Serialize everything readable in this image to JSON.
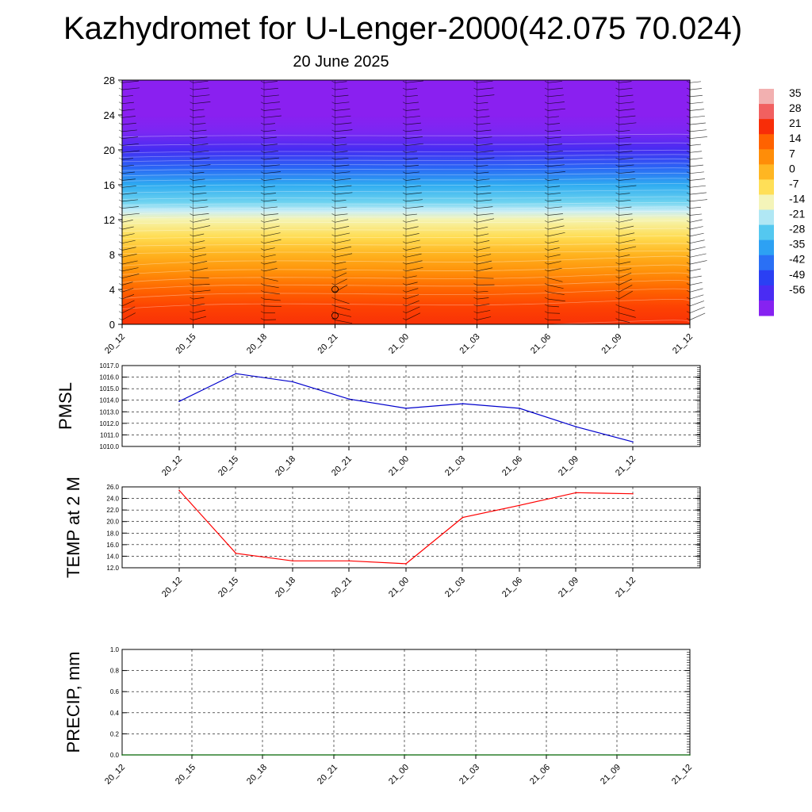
{
  "title": "Kazhydromet for U-Lenger-2000(42.075 70.024)",
  "subtitle": "20 June 2025",
  "chart_data": [
    {
      "type": "heatmap",
      "name": "cross-section",
      "x_ticks": [
        "20_12",
        "20_15",
        "20_18",
        "20_21",
        "21_00",
        "21_03",
        "21_06",
        "21_09",
        "21_12"
      ],
      "y_ticks": [
        0,
        4,
        8,
        12,
        16,
        20,
        24,
        28
      ],
      "ylim": [
        0,
        28
      ],
      "colorbar_labels": [
        "35",
        "28",
        "21",
        "14",
        "7",
        "0",
        "-7",
        "-14",
        "-21",
        "-28",
        "-35",
        "-42",
        "-49",
        "-56"
      ],
      "color_stops": [
        {
          "value": -60,
          "color": "#8a20f0"
        },
        {
          "value": -56,
          "color": "#6a2ef5"
        },
        {
          "value": -49,
          "color": "#2a2af0"
        },
        {
          "value": -42,
          "color": "#2a55f5"
        },
        {
          "value": -35,
          "color": "#2a8af5"
        },
        {
          "value": -28,
          "color": "#30b8f0"
        },
        {
          "value": -21,
          "color": "#78d8f0"
        },
        {
          "value": -14,
          "color": "#e8f6f8"
        },
        {
          "value": -7,
          "color": "#fff27a"
        },
        {
          "value": 0,
          "color": "#ffcc33"
        },
        {
          "value": 7,
          "color": "#ffa010"
        },
        {
          "value": 14,
          "color": "#ff7a00"
        },
        {
          "value": 21,
          "color": "#ff4a00"
        },
        {
          "value": 28,
          "color": "#f01010"
        },
        {
          "value": 35,
          "color": "#f2b0b0"
        }
      ],
      "temperature_profile": [
        {
          "height": 0,
          "temp": 24
        },
        {
          "height": 2,
          "temp": 22
        },
        {
          "height": 4,
          "temp": 17
        },
        {
          "height": 6,
          "temp": 10
        },
        {
          "height": 8,
          "temp": 4
        },
        {
          "height": 10,
          "temp": -3
        },
        {
          "height": 12,
          "temp": -10
        },
        {
          "height": 13,
          "temp": -16
        },
        {
          "height": 14,
          "temp": -22
        },
        {
          "height": 16,
          "temp": -30
        },
        {
          "height": 18,
          "temp": -40
        },
        {
          "height": 20,
          "temp": -52
        },
        {
          "height": 22,
          "temp": -58
        },
        {
          "height": 24,
          "temp": -60
        },
        {
          "height": 28,
          "temp": -60
        }
      ]
    },
    {
      "type": "line",
      "ylabel": "PMSL",
      "categories": [
        "20_12",
        "20_15",
        "20_18",
        "20_21",
        "21_00",
        "21_03",
        "21_06",
        "21_09",
        "21_12"
      ],
      "values": [
        1013.9,
        1016.3,
        1015.6,
        1014.1,
        1013.3,
        1013.7,
        1013.3,
        1011.7,
        1010.4
      ],
      "ylim": [
        1010,
        1017
      ],
      "y_ticks": [
        "1010.0",
        "1011.0",
        "1012.0",
        "1013.0",
        "1014.0",
        "1015.0",
        "1016.0",
        "1017.0"
      ],
      "color": "#0000cc",
      "grid": true
    },
    {
      "type": "line",
      "ylabel": "TEMP at 2 M",
      "categories": [
        "20_12",
        "20_15",
        "20_18",
        "20_21",
        "21_00",
        "21_03",
        "21_06",
        "21_09",
        "21_12"
      ],
      "values": [
        25.4,
        14.5,
        13.2,
        13.2,
        12.7,
        20.7,
        22.8,
        25.0,
        24.8
      ],
      "ylim": [
        12,
        26
      ],
      "y_ticks": [
        "12.0",
        "14.0",
        "16.0",
        "18.0",
        "20.0",
        "22.0",
        "24.0",
        "26.0"
      ],
      "color": "#ff0000",
      "grid": true
    },
    {
      "type": "line",
      "ylabel": "PRECIP, mm",
      "categories": [
        "20_12",
        "20_15",
        "20_18",
        "20_21",
        "21_00",
        "21_03",
        "21_06",
        "21_09",
        "21_12"
      ],
      "values": [
        0,
        0,
        0,
        0,
        0,
        0,
        0,
        0,
        0
      ],
      "ylim": [
        0,
        1
      ],
      "y_ticks": [
        "0.0",
        "0.2",
        "0.4",
        "0.6",
        "0.8",
        "1.0"
      ],
      "color": "#006400",
      "grid": true
    }
  ]
}
